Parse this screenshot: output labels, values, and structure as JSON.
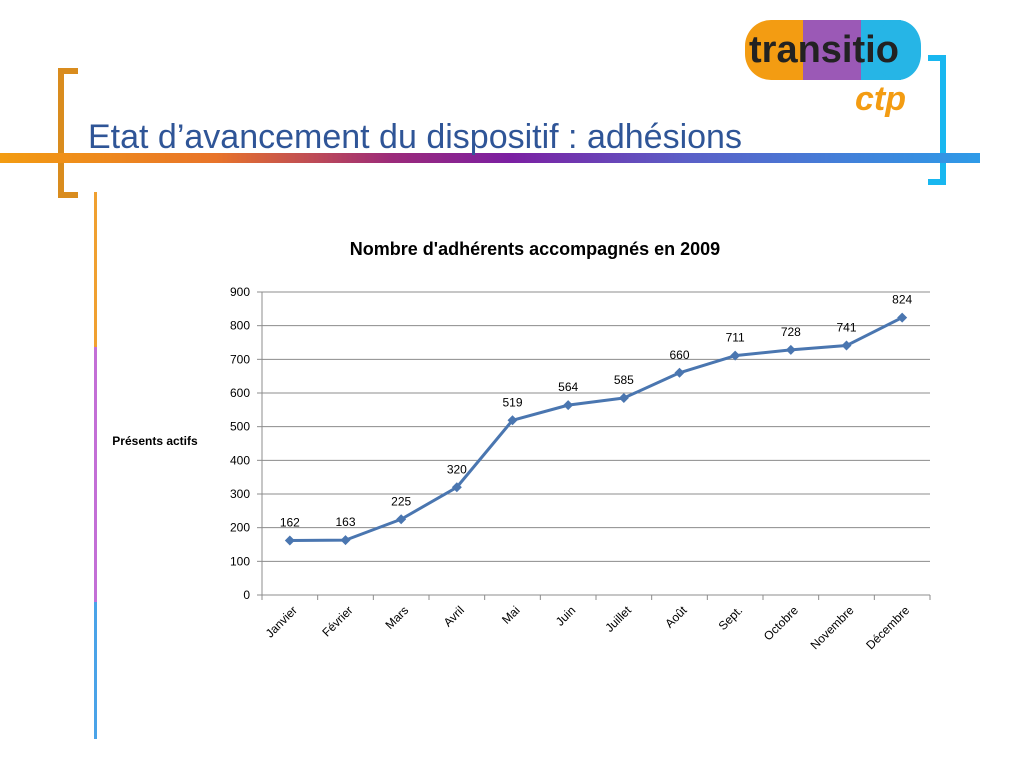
{
  "slide": {
    "title": "Etat d’avancement du dispositif : adhésions",
    "logo_text_top": "transitio",
    "logo_text_bottom": "ctp"
  },
  "colors": {
    "title": "#2f5597",
    "series": "#4a76b0",
    "grid": "#8c8c8c",
    "bracket_left": "#d98c1e",
    "bracket_right": "#18b7f0"
  },
  "chart_data": {
    "type": "line",
    "title": "Nombre d'adhérents accompagnés en 2009",
    "ylabel": "Présents actifs",
    "xlabel": "",
    "categories": [
      "Janvier",
      "Février",
      "Mars",
      "Avril",
      "Mai",
      "Juin",
      "Juillet",
      "Août",
      "Sept.",
      "Octobre",
      "Novembre",
      "Décembre"
    ],
    "series": [
      {
        "values": [
          162,
          163,
          225,
          320,
          519,
          564,
          585,
          660,
          711,
          728,
          741,
          824
        ]
      }
    ],
    "ylim": [
      0,
      900
    ],
    "yticks": [
      0,
      100,
      200,
      300,
      400,
      500,
      600,
      700,
      800,
      900
    ],
    "grid": true,
    "data_labels": true,
    "legend": "none"
  }
}
